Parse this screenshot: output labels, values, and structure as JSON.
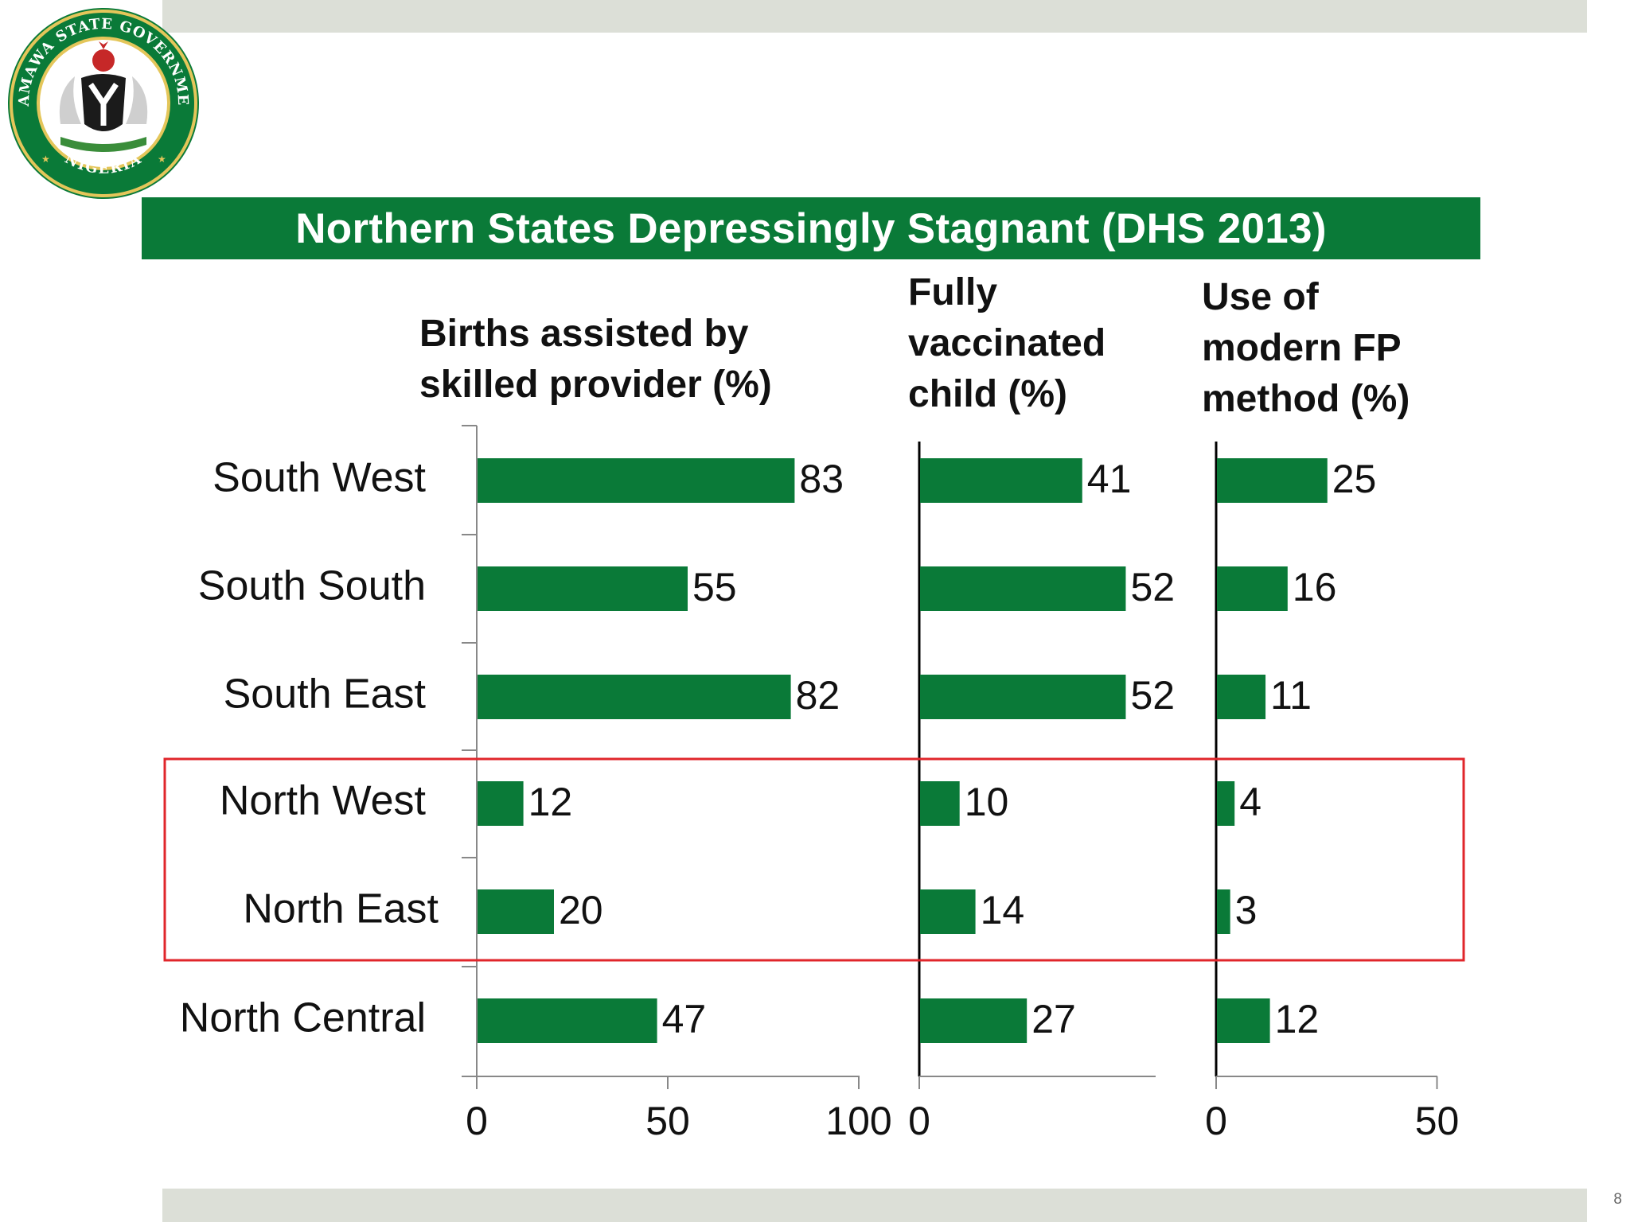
{
  "slide": {
    "title": "Northern States Depressingly Stagnant (DHS 2013)",
    "page_number": "8"
  },
  "logo": {
    "ring_text_top": "ADAMAWA STATE GOVERNMENT",
    "ring_text_bottom": "NIGERIA"
  },
  "colors": {
    "bar": "#0a7a38",
    "title_bar": "#0a7a38",
    "highlight_box": "#e0262b",
    "band": "#dcdfd7"
  },
  "chart_data": {
    "type": "bar",
    "orientation": "horizontal",
    "categories": [
      "South West",
      "South South",
      "South East",
      "North West",
      "North East",
      "North Central"
    ],
    "highlighted_categories": [
      "North West",
      "North East"
    ],
    "panels": [
      {
        "name": "Births assisted by skilled provider (%)",
        "header": "Births assisted by\nskilled provider (%)",
        "values": [
          83,
          55,
          82,
          12,
          20,
          47
        ],
        "xlim": [
          0,
          100
        ],
        "ticks": [
          0,
          50,
          100
        ]
      },
      {
        "name": "Fully vaccinated child (%)",
        "header": "Fully\nvaccinated\nchild (%)",
        "values": [
          41,
          52,
          52,
          10,
          14,
          27
        ],
        "xlim": [
          0,
          60
        ],
        "ticks": [
          0
        ]
      },
      {
        "name": "Use of modern FP method (%)",
        "header": "Use of\nmodern FP\nmethod (%)",
        "values": [
          25,
          16,
          11,
          4,
          3,
          12
        ],
        "xlim": [
          0,
          50
        ],
        "ticks": [
          0,
          50
        ]
      }
    ]
  }
}
